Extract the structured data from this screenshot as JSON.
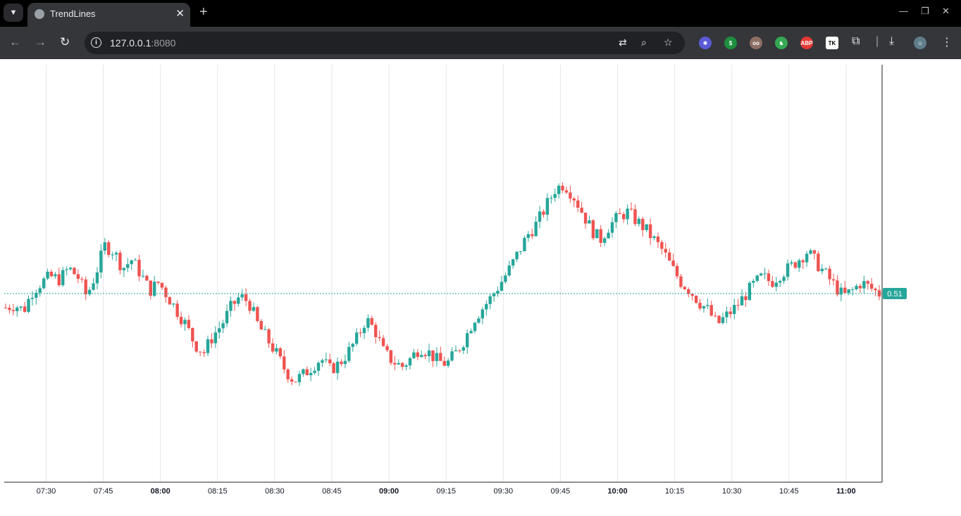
{
  "browser": {
    "tab_title": "TrendLines",
    "url_host": "127.0.0.1",
    "url_port": ":8080"
  },
  "chart_data": {
    "type": "candlestick",
    "xlabel": "",
    "ylabel": "",
    "x_ticks": [
      {
        "t": "07:30",
        "bold": false
      },
      {
        "t": "07:45",
        "bold": false
      },
      {
        "t": "08:00",
        "bold": true
      },
      {
        "t": "08:15",
        "bold": false
      },
      {
        "t": "08:30",
        "bold": false
      },
      {
        "t": "08:45",
        "bold": false
      },
      {
        "t": "09:00",
        "bold": true
      },
      {
        "t": "09:15",
        "bold": false
      },
      {
        "t": "09:30",
        "bold": false
      },
      {
        "t": "09:45",
        "bold": false
      },
      {
        "t": "10:00",
        "bold": true
      },
      {
        "t": "10:15",
        "bold": false
      },
      {
        "t": "10:30",
        "bold": false
      },
      {
        "t": "10:45",
        "bold": false
      },
      {
        "t": "11:00",
        "bold": true
      }
    ],
    "last_price_label": "0.51",
    "last_price": 0.51,
    "colors": {
      "up": "#26a69a",
      "down": "#ef5350",
      "grid": "#e6e6e6"
    },
    "grid": true,
    "close_path": [
      0.46,
      0.47,
      0.45,
      0.52,
      0.55,
      0.57,
      0.56,
      0.6,
      0.57,
      0.5,
      0.58,
      0.68,
      0.66,
      0.6,
      0.63,
      0.58,
      0.52,
      0.55,
      0.5,
      0.45,
      0.4,
      0.33,
      0.3,
      0.36,
      0.4,
      0.46,
      0.5,
      0.48,
      0.4,
      0.35,
      0.3,
      0.24,
      0.2,
      0.22,
      0.25,
      0.28,
      0.24,
      0.26,
      0.3,
      0.35,
      0.42,
      0.38,
      0.3,
      0.27,
      0.25,
      0.28,
      0.32,
      0.3,
      0.27,
      0.26,
      0.3,
      0.35,
      0.42,
      0.46,
      0.5,
      0.55,
      0.6,
      0.66,
      0.72,
      0.76,
      0.82,
      0.88,
      0.9,
      0.86,
      0.8,
      0.74,
      0.7,
      0.75,
      0.78,
      0.8,
      0.77,
      0.74,
      0.7,
      0.66,
      0.6,
      0.55,
      0.52,
      0.48,
      0.45,
      0.4,
      0.43,
      0.46,
      0.5,
      0.54,
      0.57,
      0.55,
      0.58,
      0.6,
      0.63,
      0.66,
      0.62,
      0.58,
      0.54,
      0.5,
      0.52,
      0.55,
      0.53,
      0.51
    ]
  }
}
